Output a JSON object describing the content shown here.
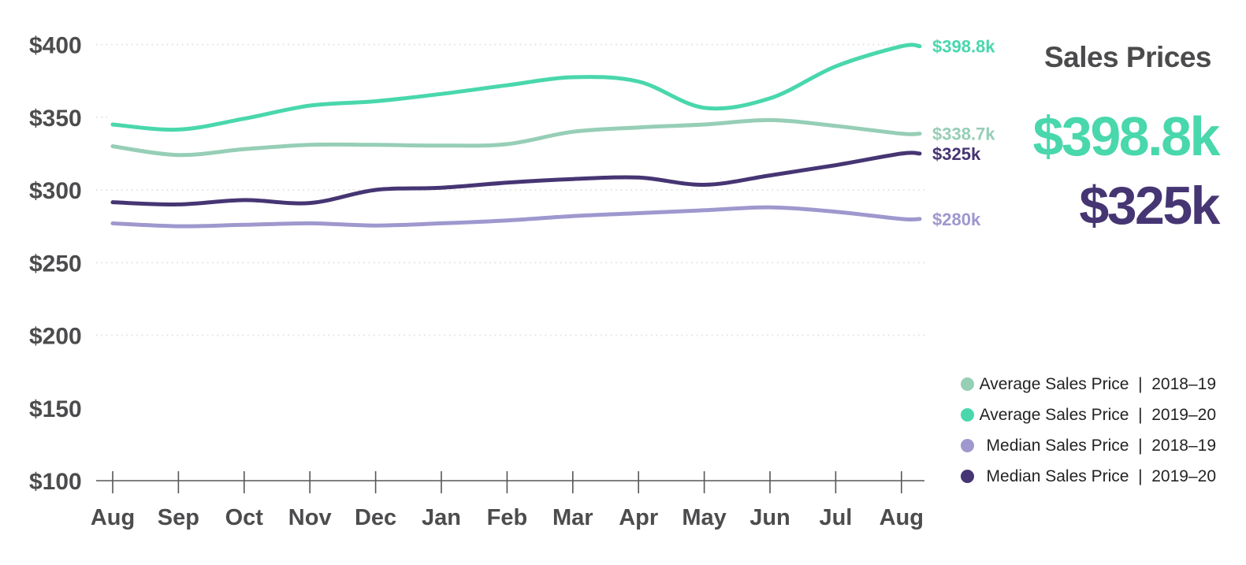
{
  "title": "Sales Prices",
  "summary_values": [
    {
      "text": "$398.8k",
      "color_key": "teal"
    },
    {
      "text": "$325k",
      "color_key": "dark_purple"
    }
  ],
  "colors": {
    "teal": "#49d7ac",
    "seafoam": "#96ceb6",
    "lavender": "#9e98ce",
    "dark_purple": "#463573",
    "text_dark": "#4c4c4e",
    "title_text": "#4b4b4d",
    "legend_text": "#232323",
    "grid": "#e2e2e2",
    "axis": "#565656"
  },
  "legend": [
    {
      "key": "avg-2018-19",
      "label": "Average Sales Price  |  2018–19",
      "color_key": "seafoam"
    },
    {
      "key": "avg-2019-20",
      "label": "Average Sales Price  |  2019–20",
      "color_key": "teal"
    },
    {
      "key": "med-2018-19",
      "label": "Median Sales Price  |  2018–19",
      "color_key": "lavender"
    },
    {
      "key": "med-2019-20",
      "label": "Median Sales Price  |  2019–20",
      "color_key": "dark_purple"
    }
  ],
  "chart_data": {
    "type": "line",
    "title": "Sales Prices",
    "x_categories": [
      "Aug",
      "Sep",
      "Oct",
      "Nov",
      "Dec",
      "Jan",
      "Feb",
      "Mar",
      "Apr",
      "May",
      "Jun",
      "Jul",
      "Aug"
    ],
    "y_ticks": [
      {
        "label": "$400",
        "value": 400
      },
      {
        "label": "$350",
        "value": 350
      },
      {
        "label": "$300",
        "value": 300
      },
      {
        "label": "$250",
        "value": 250
      },
      {
        "label": "$200",
        "value": 200
      },
      {
        "label": "$150",
        "value": 150
      },
      {
        "label": "$100",
        "value": 100
      }
    ],
    "ylim": [
      100,
      415
    ],
    "grid": "dotted horizontal",
    "grid_values": [
      400,
      300,
      250,
      200
    ],
    "partial_grid_value": 350,
    "legend_position": "right",
    "units": "thousand USD",
    "series": [
      {
        "key": "avg-2018-19",
        "name": "Average Sales Price | 2018–19",
        "color_key": "seafoam",
        "end_label": "$338.7k",
        "values": [
          330,
          324,
          328,
          331,
          331,
          330.5,
          331.5,
          340,
          343,
          345,
          348,
          344,
          338.7
        ]
      },
      {
        "key": "avg-2019-20",
        "name": "Average Sales Price | 2019–20",
        "color_key": "teal",
        "end_label": "$398.8k",
        "values": [
          345,
          341.5,
          349,
          358,
          361,
          366,
          372,
          377.5,
          374.5,
          356.5,
          363,
          385,
          398.8
        ]
      },
      {
        "key": "med-2018-19",
        "name": "Median Sales Price | 2018–19",
        "color_key": "lavender",
        "end_label": "$280k",
        "values": [
          277,
          275,
          276,
          277,
          275.5,
          277,
          279,
          282,
          284,
          286,
          288,
          285,
          280
        ]
      },
      {
        "key": "med-2019-20",
        "name": "Median Sales Price | 2019–20",
        "color_key": "dark_purple",
        "end_label": "$325k",
        "values": [
          291.5,
          290,
          293,
          291,
          300,
          301.5,
          305,
          307.5,
          308.5,
          303.5,
          310,
          317,
          325
        ]
      }
    ]
  }
}
